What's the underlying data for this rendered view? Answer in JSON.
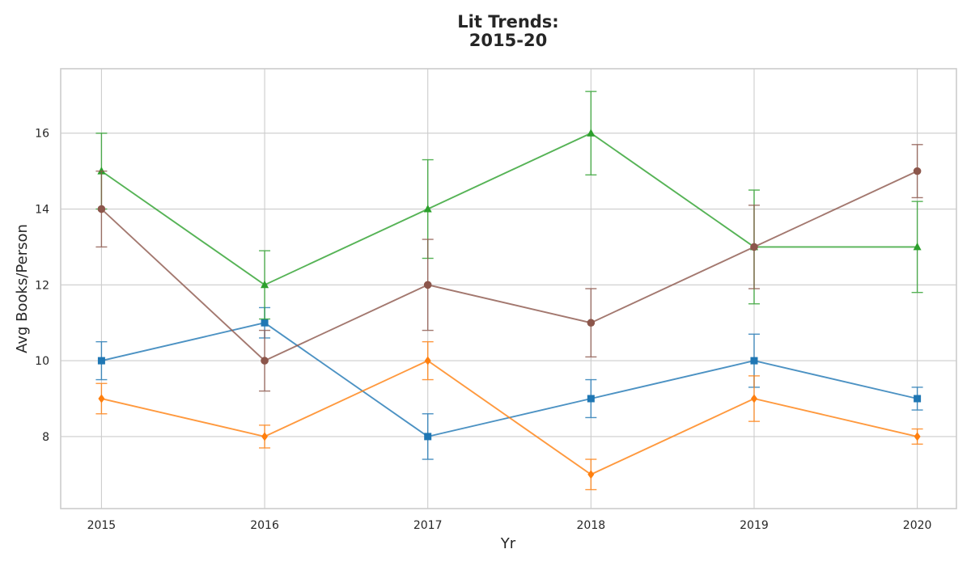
{
  "chart_data": {
    "type": "line",
    "title": [
      "Lit Trends:",
      "2015-20"
    ],
    "xlabel": "Yr",
    "ylabel": "Avg Books/Person",
    "x": [
      2015,
      2016,
      2017,
      2018,
      2019,
      2020
    ],
    "x_tick_labels": [
      "2015",
      "2016",
      "2017",
      "2018",
      "2019",
      "2020"
    ],
    "y_ticks": [
      8,
      10,
      12,
      14,
      16
    ],
    "ylim": [
      6.1,
      17.7
    ],
    "xlim": [
      2014.75,
      2020.24
    ],
    "grid": true,
    "legend": "none",
    "error_bars": true,
    "series": [
      {
        "color": "#1f77b4",
        "marker": "square",
        "values": [
          10,
          11,
          8,
          9,
          10,
          9
        ],
        "errors": [
          0.5,
          0.4,
          0.6,
          0.5,
          0.7,
          0.3
        ]
      },
      {
        "color": "#ff7f0e",
        "marker": "diamond",
        "values": [
          9,
          8,
          10,
          7,
          9,
          8
        ],
        "errors": [
          0.4,
          0.3,
          0.5,
          0.4,
          0.6,
          0.2
        ]
      },
      {
        "color": "#2ca02c",
        "marker": "triangle",
        "values": [
          15,
          12,
          14,
          16,
          13,
          13
        ],
        "errors": [
          1.0,
          0.9,
          1.3,
          1.1,
          1.5,
          1.2
        ]
      },
      {
        "color": "#8c564b",
        "marker": "circle",
        "values": [
          14,
          10,
          12,
          11,
          13,
          15
        ],
        "errors": [
          1.0,
          0.8,
          1.2,
          0.9,
          1.1,
          0.7
        ]
      }
    ]
  }
}
